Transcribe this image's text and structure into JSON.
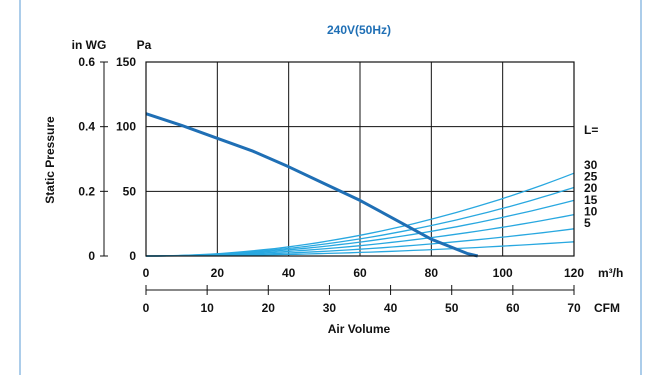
{
  "chart_data": {
    "type": "line",
    "title": "240V(50Hz)",
    "ylabel": "Static Pressure",
    "xlabel": "Air Volume",
    "x_unit_top": "m³/h",
    "x_unit_bottom": "CFM",
    "y_unit_left": "in WG",
    "y_unit_right": "Pa",
    "x_range_m3h": [
      0,
      120
    ],
    "x_ticks_m3h": [
      "0",
      "20",
      "40",
      "60",
      "80",
      "100",
      "120"
    ],
    "x_ticks_cfm": [
      "0",
      "10",
      "20",
      "30",
      "40",
      "50",
      "60",
      "70"
    ],
    "y_range_pa": [
      0,
      150
    ],
    "y_ticks_pa": [
      "0",
      "50",
      "100",
      "150"
    ],
    "y_ticks_inwg": [
      "0",
      "0.2",
      "0.4",
      "0.6"
    ],
    "legend_header": "L=",
    "fan_curve": {
      "color": "#1f6fb5",
      "x": [
        0,
        10,
        20,
        30,
        40,
        50,
        60,
        70,
        80,
        90,
        93
      ],
      "y": [
        110,
        101,
        91,
        81,
        69,
        56,
        43,
        28,
        13,
        2,
        0
      ]
    },
    "system_curves": {
      "color": "#29a8e0",
      "series": [
        {
          "name": "30",
          "y_at_120": 64
        },
        {
          "name": "25",
          "y_at_120": 53
        },
        {
          "name": "20",
          "y_at_120": 43
        },
        {
          "name": "15",
          "y_at_120": 32
        },
        {
          "name": "10",
          "y_at_120": 21
        },
        {
          "name": "5",
          "y_at_120": 11
        }
      ]
    }
  }
}
